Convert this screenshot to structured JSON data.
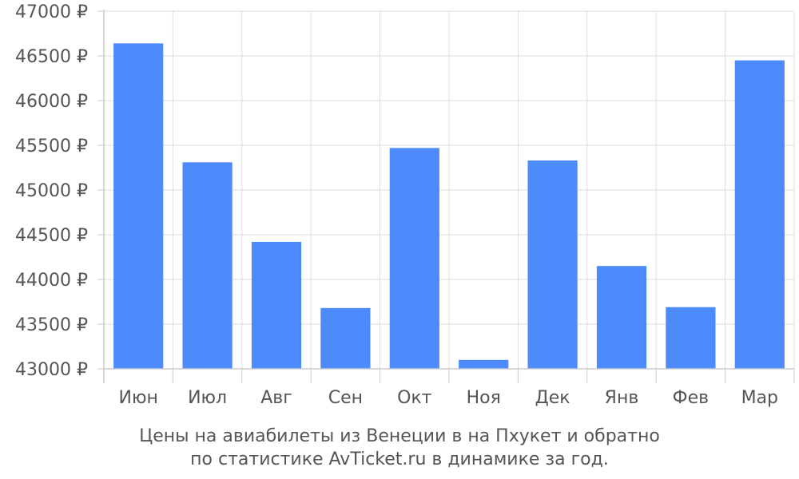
{
  "chart_data": {
    "type": "bar",
    "categories": [
      "Июн",
      "Июл",
      "Авг",
      "Сен",
      "Окт",
      "Ноя",
      "Дек",
      "Янв",
      "Фев",
      "Мар"
    ],
    "values": [
      46640,
      45310,
      44420,
      43680,
      45470,
      43100,
      45330,
      44150,
      43690,
      46450
    ],
    "ylim": [
      43000,
      47000
    ],
    "yticks": [
      43000,
      43500,
      44000,
      44500,
      45000,
      45500,
      46000,
      46500,
      47000
    ],
    "ytick_suffix": " ₽",
    "bar_color": "#4d8afc",
    "grid": true,
    "caption_lines": [
      "Цены на авиабилеты из Венеции в на Пхукет и обратно",
      "по статистике AvTicket.ru в динамике за год."
    ]
  }
}
